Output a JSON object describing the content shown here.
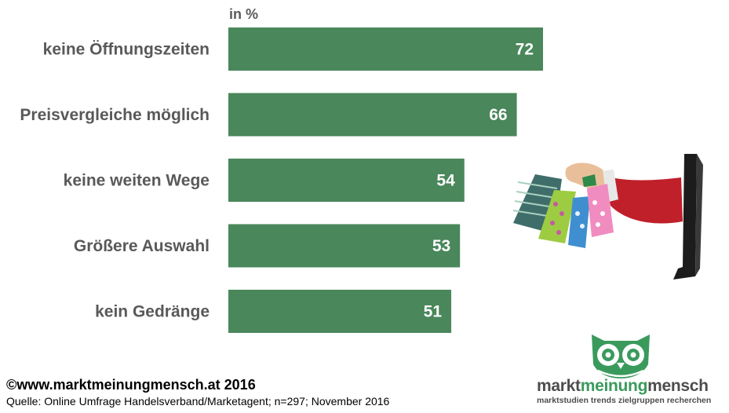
{
  "chart_data": {
    "type": "bar",
    "orientation": "horizontal",
    "unit_label": "in %",
    "categories": [
      "keine Öffnungszeiten",
      "Preisvergleiche möglich",
      "keine weiten Wege",
      "Größere Auswahl",
      "kein Gedränge"
    ],
    "values": [
      72,
      66,
      54,
      53,
      51
    ],
    "xlim": [
      0,
      72
    ],
    "grid": false,
    "colors": {
      "bar": "#4a875b",
      "category_text": "#595959",
      "value_text": "#ffffff"
    }
  },
  "footer": {
    "copyright": "©www.marktmeinungmensch.at 2016",
    "source": "Quelle: Online Umfrage Handelsverband/Marketagent; n=297; November 2016"
  },
  "logo": {
    "part1": "markt",
    "part2": "meinung",
    "part3": "mensch",
    "tagline": "marktstudien trends zielgruppen recherchen",
    "icon": "owl-icon",
    "color": "#3a9a5c"
  },
  "illustration": {
    "icon": "shopping-bags-hand-from-monitor"
  }
}
